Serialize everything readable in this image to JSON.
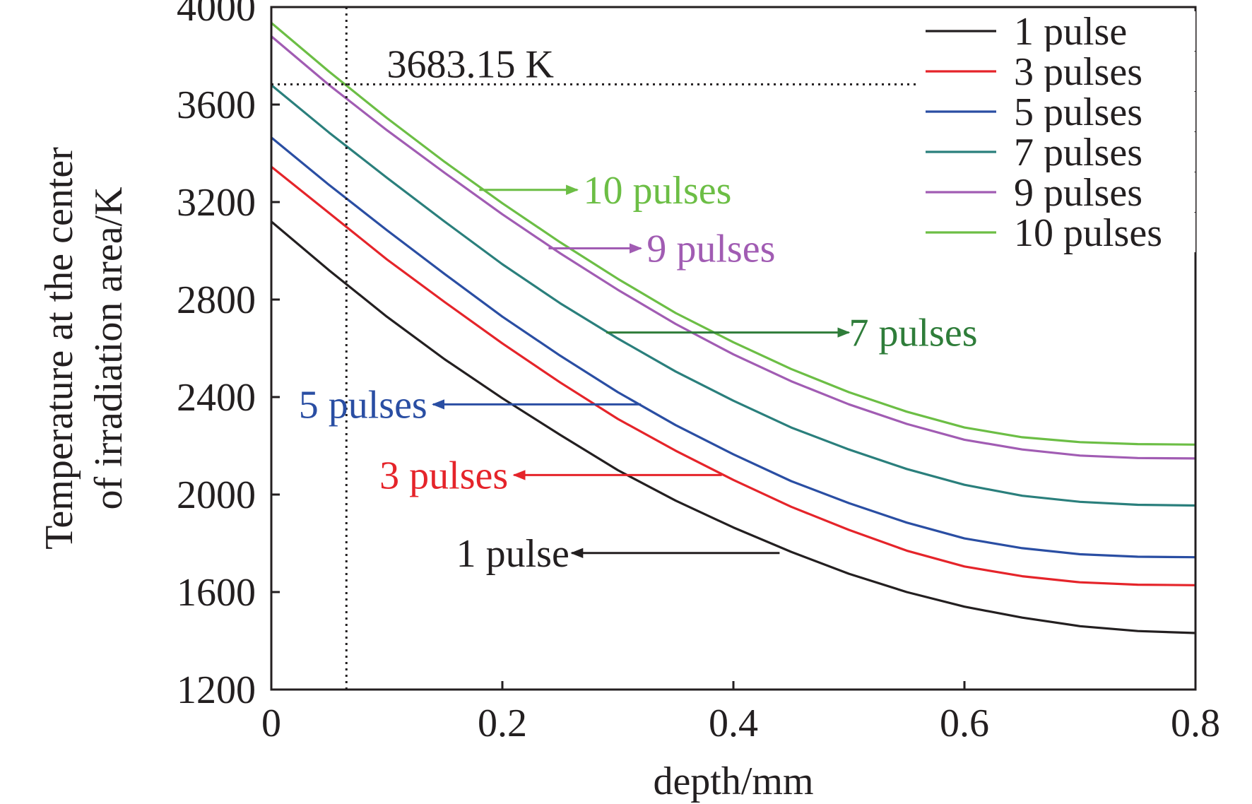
{
  "chart_data": {
    "type": "line",
    "xlabel": "depth/mm",
    "ylabel_lines": [
      "Temperature at the center",
      "of irradiation area/K"
    ],
    "xlim": [
      0,
      0.8
    ],
    "ylim": [
      1200,
      4000
    ],
    "xticks": [
      0,
      0.2,
      0.4,
      0.6,
      0.8
    ],
    "xtick_labels": [
      "0",
      "0.2",
      "0.4",
      "0.6",
      "0.8"
    ],
    "yticks": [
      1200,
      1600,
      2000,
      2400,
      2800,
      3200,
      3600,
      4000
    ],
    "ytick_labels": [
      "1200",
      "1600",
      "2000",
      "2400",
      "2800",
      "3200",
      "3600",
      "4000"
    ],
    "grid": false,
    "legend_position": "top-right",
    "x": [
      0,
      0.05,
      0.1,
      0.15,
      0.2,
      0.25,
      0.3,
      0.35,
      0.4,
      0.45,
      0.5,
      0.55,
      0.6,
      0.65,
      0.7,
      0.75,
      0.8
    ],
    "series": [
      {
        "name": "1 pulse",
        "color": "#231f20",
        "values": [
          3120,
          2920,
          2730,
          2555,
          2395,
          2245,
          2100,
          1975,
          1865,
          1765,
          1675,
          1600,
          1540,
          1495,
          1460,
          1440,
          1432
        ]
      },
      {
        "name": "3 pulses",
        "color": "#e5242a",
        "values": [
          3345,
          3155,
          2965,
          2790,
          2620,
          2460,
          2310,
          2180,
          2060,
          1950,
          1855,
          1770,
          1705,
          1665,
          1640,
          1630,
          1628
        ]
      },
      {
        "name": "5 pulses",
        "color": "#2a4ea3",
        "values": [
          3465,
          3270,
          3085,
          2905,
          2730,
          2570,
          2420,
          2285,
          2165,
          2055,
          1965,
          1885,
          1820,
          1780,
          1755,
          1745,
          1743
        ]
      },
      {
        "name": "7 pulses",
        "color": "#2a7f7c",
        "values": [
          3680,
          3485,
          3300,
          3120,
          2945,
          2785,
          2640,
          2505,
          2385,
          2275,
          2185,
          2105,
          2040,
          1995,
          1970,
          1958,
          1955
        ]
      },
      {
        "name": "9 pulses",
        "color": "#a15cb3",
        "values": [
          3880,
          3680,
          3495,
          3320,
          3150,
          2990,
          2840,
          2700,
          2575,
          2465,
          2370,
          2290,
          2225,
          2185,
          2160,
          2150,
          2148
        ]
      },
      {
        "name": "10 pulses",
        "color": "#6cbe45",
        "values": [
          3935,
          3735,
          3545,
          3365,
          3195,
          3035,
          2885,
          2745,
          2625,
          2515,
          2420,
          2340,
          2275,
          2235,
          2215,
          2207,
          2205
        ]
      }
    ],
    "reference_lines": [
      {
        "orientation": "horizontal",
        "value": 3683.15,
        "x_end": 0.6,
        "label": "3683.15 K",
        "style": "dotted"
      },
      {
        "orientation": "vertical",
        "value": 0.065,
        "style": "dotted"
      }
    ],
    "annotations": [
      {
        "text": "10 pulses",
        "color": "#6cbe45",
        "arrow_from": [
          0.18,
          3250
        ],
        "arrow_to": [
          0.265,
          3250
        ],
        "label_at": [
          0.27,
          3250
        ],
        "anchor": "start"
      },
      {
        "text": "9 pulses",
        "color": "#a15cb3",
        "arrow_from": [
          0.24,
          3010
        ],
        "arrow_to": [
          0.32,
          3010
        ],
        "label_at": [
          0.325,
          3010
        ],
        "anchor": "start"
      },
      {
        "text": "7 pulses",
        "color": "#2f7d3a",
        "arrow_from": [
          0.29,
          2665
        ],
        "arrow_to": [
          0.5,
          2665
        ],
        "label_at": [
          0.5,
          2665
        ],
        "anchor": "start"
      },
      {
        "text": "5 pulses",
        "color": "#2a4ea3",
        "arrow_from": [
          0.32,
          2370
        ],
        "arrow_to": [
          0.14,
          2370
        ],
        "label_at": [
          0.135,
          2370
        ],
        "anchor": "end"
      },
      {
        "text": "3 pulses",
        "color": "#e5242a",
        "arrow_from": [
          0.39,
          2080
        ],
        "arrow_to": [
          0.21,
          2080
        ],
        "label_at": [
          0.205,
          2080
        ],
        "anchor": "end"
      },
      {
        "text": "1 pulse",
        "color": "#231f20",
        "arrow_from": [
          0.44,
          1760
        ],
        "arrow_to": [
          0.26,
          1760
        ],
        "label_at": [
          0.258,
          1760
        ],
        "anchor": "end"
      }
    ]
  }
}
